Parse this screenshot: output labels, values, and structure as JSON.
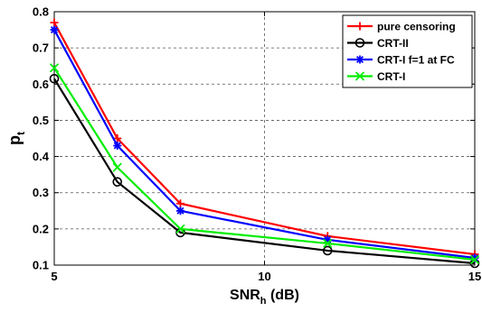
{
  "chart_data": {
    "type": "line",
    "xlabel": {
      "main": "SNR",
      "sub": "h",
      "unit": " (dB)"
    },
    "ylabel": {
      "main": "p",
      "sub": "t"
    },
    "xlim": [
      5,
      15
    ],
    "ylim": [
      0.1,
      0.8
    ],
    "xticks": [
      5,
      10,
      15
    ],
    "yticks": [
      0.1,
      0.2,
      0.3,
      0.4,
      0.5,
      0.6,
      0.7,
      0.8
    ],
    "grid": "dashed",
    "legend_position": "top-right",
    "series": [
      {
        "name": "pure censoring",
        "color": "#ff0000",
        "marker": "plus",
        "x": [
          5,
          6.5,
          8,
          11.5,
          15
        ],
        "y": [
          0.77,
          0.45,
          0.27,
          0.18,
          0.13
        ]
      },
      {
        "name": "CRT-II",
        "color": "#000000",
        "marker": "circle",
        "x": [
          5,
          6.5,
          8,
          11.5,
          15
        ],
        "y": [
          0.615,
          0.33,
          0.19,
          0.14,
          0.105
        ]
      },
      {
        "name": "CRT-I f=1 at FC",
        "color": "#0000ff",
        "marker": "asterisk",
        "x": [
          5,
          6.5,
          8,
          11.5,
          15
        ],
        "y": [
          0.75,
          0.43,
          0.25,
          0.17,
          0.12
        ]
      },
      {
        "name": "CRT-I",
        "color": "#00ee00",
        "marker": "cross",
        "x": [
          5,
          6.5,
          8,
          11.5,
          15
        ],
        "y": [
          0.645,
          0.37,
          0.2,
          0.16,
          0.115
        ]
      }
    ]
  }
}
